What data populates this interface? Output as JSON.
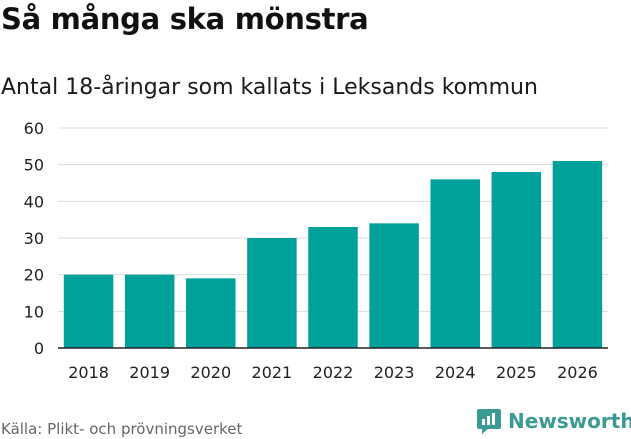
{
  "header": {
    "title": "Så många ska mönstra",
    "subtitle": "Antal 18-åringar som kallats i Leksands kommun"
  },
  "footer": {
    "source": "Källa: Plikt- och prövningsverket",
    "brand": "Newsworthy"
  },
  "colors": {
    "bar": "#00a19a",
    "grid": "#dddddd",
    "axis": "#222222",
    "brand": "#3c9a94"
  },
  "chart_data": {
    "type": "bar",
    "title": "Så många ska mönstra",
    "subtitle": "Antal 18-åringar som kallats i Leksands kommun",
    "categories": [
      "2018",
      "2019",
      "2020",
      "2021",
      "2022",
      "2023",
      "2024",
      "2025",
      "2026"
    ],
    "values": [
      20,
      20,
      19,
      30,
      33,
      34,
      46,
      48,
      51
    ],
    "xlabel": "",
    "ylabel": "",
    "ylim": [
      0,
      60
    ],
    "yticks": [
      0,
      10,
      20,
      30,
      40,
      50,
      60
    ],
    "grid": true,
    "legend": "none"
  }
}
